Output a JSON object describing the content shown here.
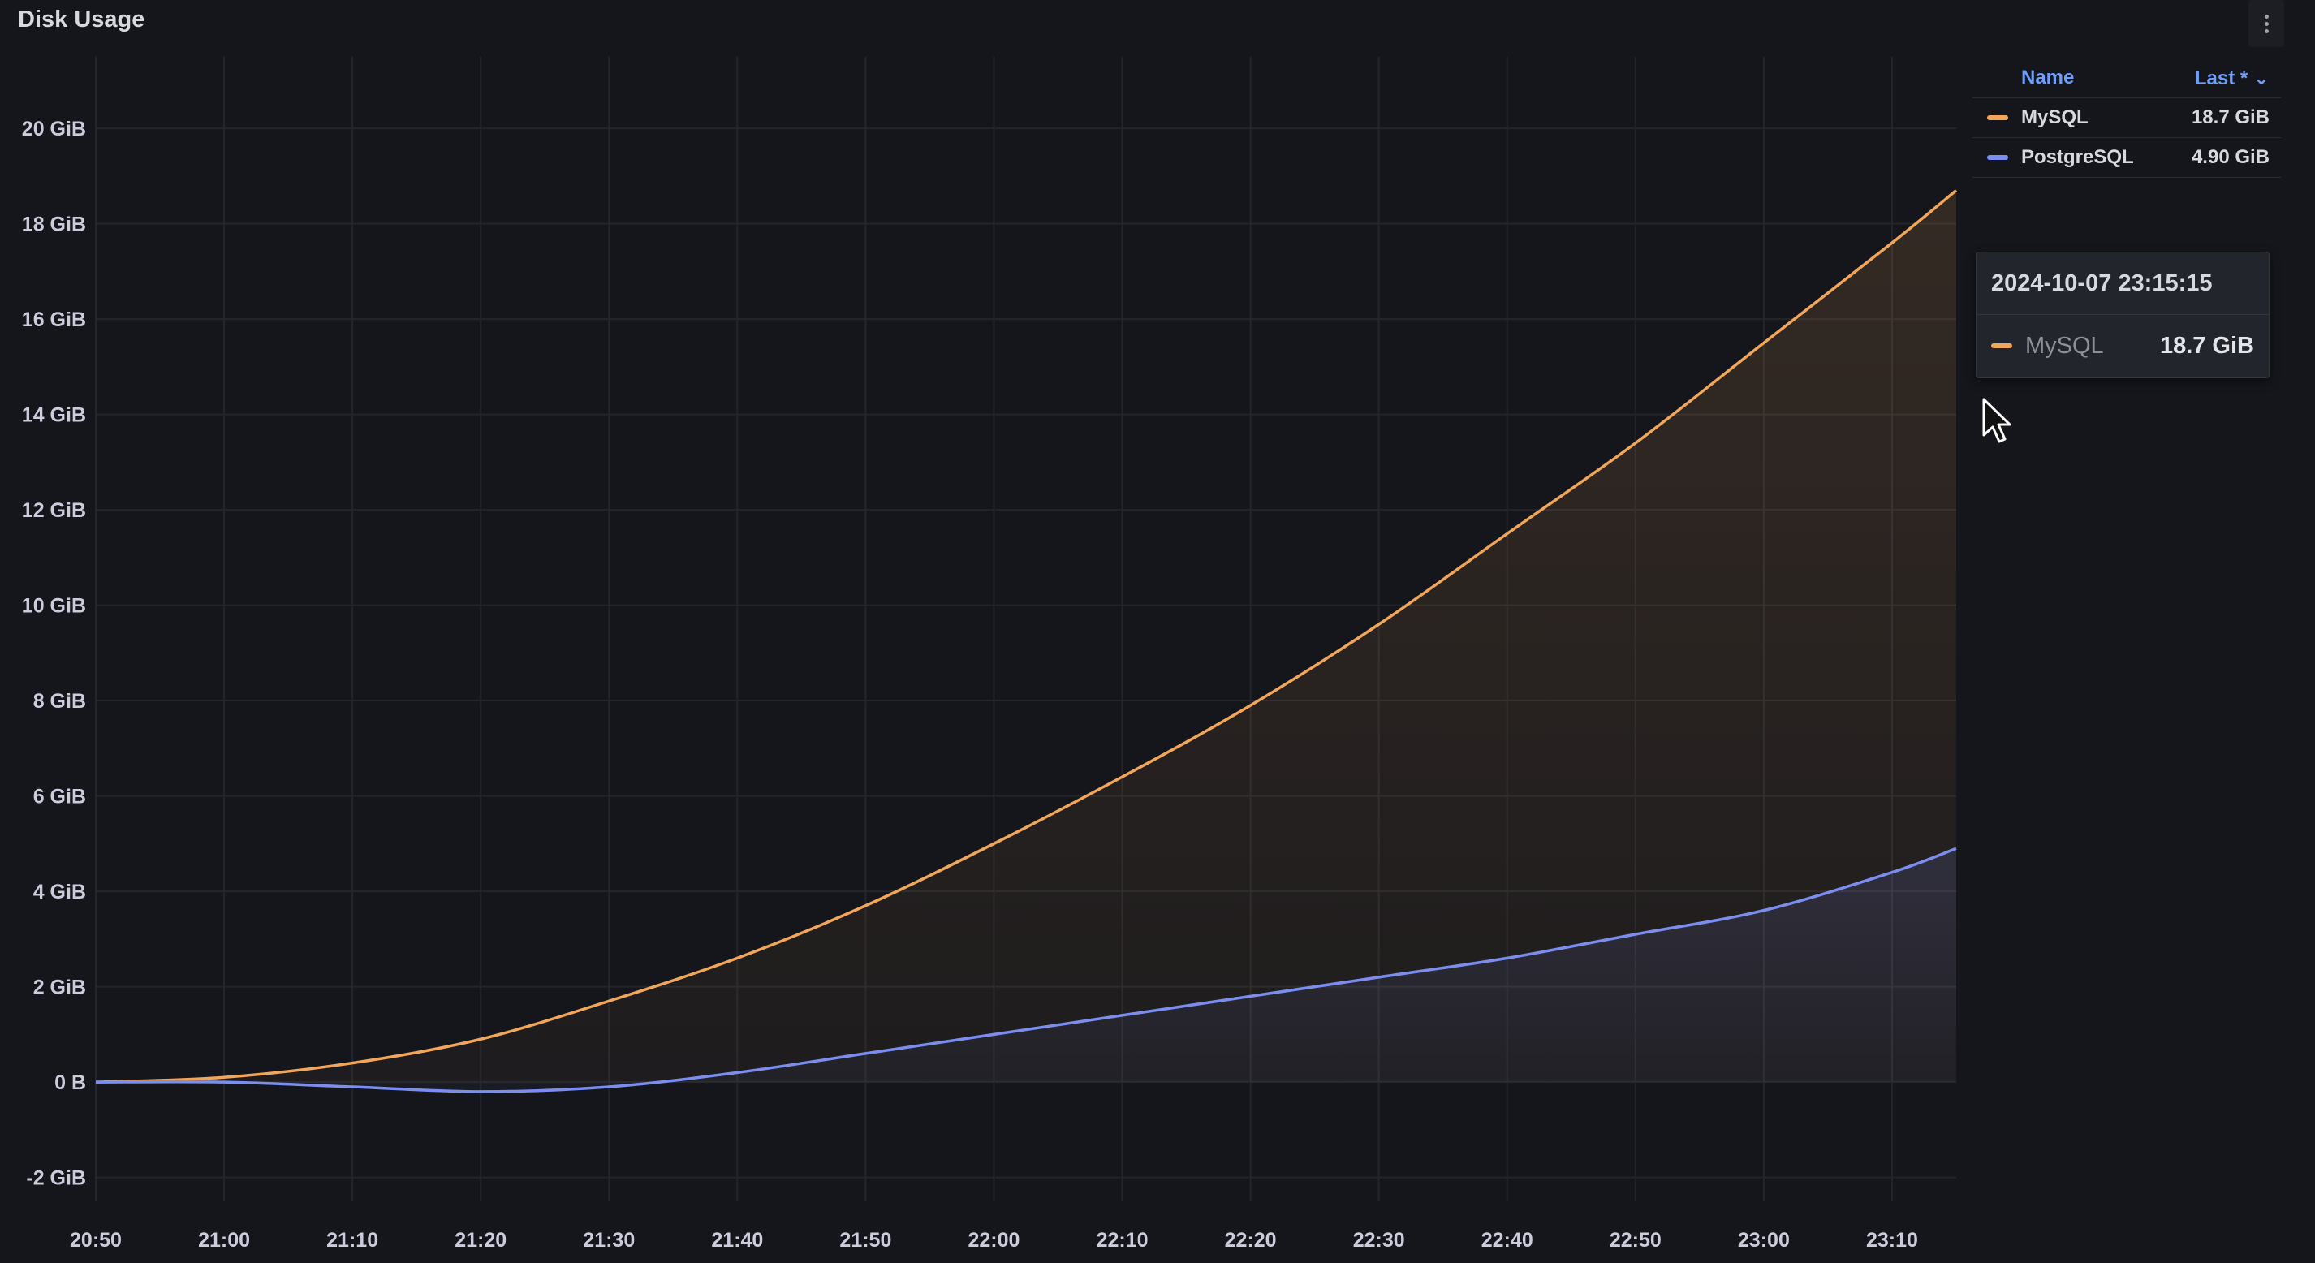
{
  "panel": {
    "title": "Disk Usage"
  },
  "legend": {
    "header_name": "Name",
    "header_last": "Last * ⌄",
    "rows": [
      {
        "name": "MySQL",
        "value": "18.7 GiB",
        "color": "#f2a65a"
      },
      {
        "name": "PostgreSQL",
        "value": "4.90 GiB",
        "color": "#7b8ef0"
      }
    ]
  },
  "tooltip": {
    "timestamp": "2024-10-07 23:15:15",
    "series": "MySQL",
    "value": "18.7 GiB",
    "color": "#f2a65a"
  },
  "chart_data": {
    "type": "area",
    "title": "Disk Usage",
    "x": [
      "20:50",
      "21:00",
      "21:10",
      "21:20",
      "21:30",
      "21:40",
      "21:50",
      "22:00",
      "22:10",
      "22:20",
      "22:30",
      "22:40",
      "22:50",
      "23:00",
      "23:10",
      "23:15"
    ],
    "xticks": [
      "20:50",
      "21:00",
      "21:10",
      "21:20",
      "21:30",
      "21:40",
      "21:50",
      "22:00",
      "22:10",
      "22:20",
      "22:30",
      "22:40",
      "22:50",
      "23:00",
      "23:10"
    ],
    "yticks": [
      "-2 GiB",
      "0 B",
      "2 GiB",
      "4 GiB",
      "6 GiB",
      "8 GiB",
      "10 GiB",
      "12 GiB",
      "14 GiB",
      "16 GiB",
      "18 GiB",
      "20 GiB"
    ],
    "ylim": [
      -2.5,
      21.5
    ],
    "grid": true,
    "legend_position": "right",
    "series": [
      {
        "name": "MySQL",
        "color": "#f2a65a",
        "values": [
          0,
          0.1,
          0.4,
          0.9,
          1.7,
          2.6,
          3.7,
          5.0,
          6.4,
          7.9,
          9.6,
          11.5,
          13.4,
          15.5,
          17.6,
          18.7
        ]
      },
      {
        "name": "PostgreSQL",
        "color": "#7b8ef0",
        "values": [
          0,
          0,
          -0.1,
          -0.2,
          -0.1,
          0.2,
          0.6,
          1.0,
          1.4,
          1.8,
          2.2,
          2.6,
          3.1,
          3.6,
          4.4,
          4.9
        ]
      }
    ]
  }
}
